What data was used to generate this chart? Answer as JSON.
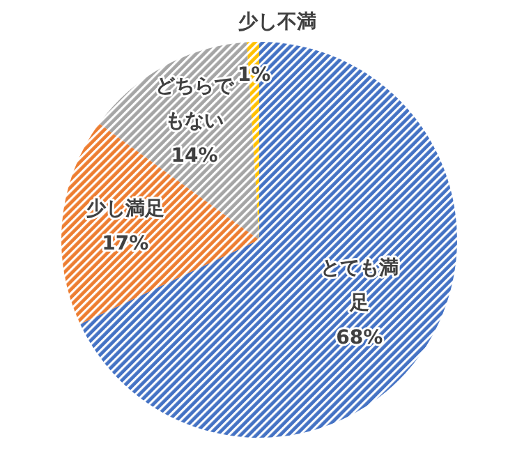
{
  "chart_data": {
    "type": "pie",
    "categories": [
      "とても満足",
      "少し満足",
      "どちらでもない",
      "少し不満"
    ],
    "values": [
      68,
      17,
      14,
      1
    ],
    "colors": [
      "#4472c4",
      "#ed7d31",
      "#a5a5a5",
      "#ffc000"
    ],
    "value_labels": [
      "68%",
      "17%",
      "14%",
      "1%"
    ]
  }
}
